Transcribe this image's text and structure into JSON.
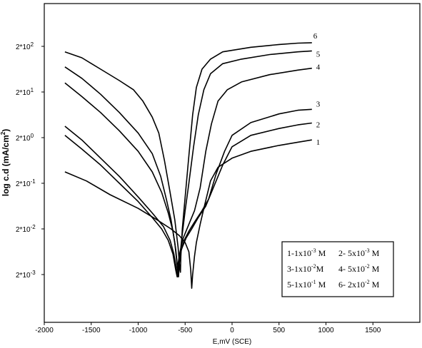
{
  "chart_data": {
    "type": "line",
    "title": "",
    "xlabel": "E,mV (SCE)",
    "ylabel": "log c.d (mA/cm",
    "ylabel_sup": "2",
    "ylabel_close": ")",
    "xlim": [
      -2000,
      2000
    ],
    "xticks": [
      -2000,
      -1500,
      -1000,
      -500,
      0,
      500,
      1000,
      1500
    ],
    "xtick_labels": [
      "-2000",
      "-1500",
      "-1000",
      "-500",
      "0",
      "500",
      "1000",
      "1500"
    ],
    "ylim": [
      -3.6,
      2.6
    ],
    "yticks": [
      {
        "value": 2,
        "base": "2*10",
        "exp": "2"
      },
      {
        "value": 1,
        "base": "2*10",
        "exp": "1"
      },
      {
        "value": 0,
        "base": "2*10",
        "exp": "0"
      },
      {
        "value": -1,
        "base": "2*10",
        "exp": "-1"
      },
      {
        "value": -2,
        "base": "2*10",
        "exp": "-2"
      },
      {
        "value": -3,
        "base": "2*10",
        "exp": "-3"
      }
    ],
    "series": [
      {
        "name": "1",
        "points": [
          [
            -1780,
            -0.75
          ],
          [
            -1550,
            -0.95
          ],
          [
            -1300,
            -1.25
          ],
          [
            -1000,
            -1.55
          ],
          [
            -800,
            -1.8
          ],
          [
            -650,
            -2.0
          ],
          [
            -560,
            -2.15
          ],
          [
            -500,
            -2.3
          ],
          [
            -460,
            -2.5
          ],
          [
            -440,
            -2.9
          ],
          [
            -430,
            -3.3
          ],
          [
            -420,
            -3.0
          ],
          [
            -400,
            -2.6
          ],
          [
            -380,
            -2.3
          ],
          [
            -340,
            -1.9
          ],
          [
            -300,
            -1.55
          ],
          [
            -230,
            -0.95
          ],
          [
            -150,
            -0.65
          ],
          [
            0,
            -0.45
          ],
          [
            200,
            -0.3
          ],
          [
            500,
            -0.17
          ],
          [
            700,
            -0.1
          ],
          [
            850,
            -0.05
          ]
        ]
      },
      {
        "name": "2",
        "points": [
          [
            -1780,
            0.05
          ],
          [
            -1600,
            -0.25
          ],
          [
            -1400,
            -0.6
          ],
          [
            -1200,
            -1.0
          ],
          [
            -1000,
            -1.4
          ],
          [
            -850,
            -1.75
          ],
          [
            -750,
            -2.0
          ],
          [
            -680,
            -2.25
          ],
          [
            -630,
            -2.55
          ],
          [
            -600,
            -2.9
          ],
          [
            -585,
            -3.05
          ],
          [
            -570,
            -2.8
          ],
          [
            -540,
            -2.45
          ],
          [
            -490,
            -2.2
          ],
          [
            -430,
            -2.0
          ],
          [
            -360,
            -1.75
          ],
          [
            -280,
            -1.5
          ],
          [
            -200,
            -1.1
          ],
          [
            -100,
            -0.6
          ],
          [
            0,
            -0.2
          ],
          [
            200,
            0.05
          ],
          [
            500,
            0.2
          ],
          [
            700,
            0.28
          ],
          [
            850,
            0.32
          ]
        ]
      },
      {
        "name": "3",
        "points": [
          [
            -1780,
            0.25
          ],
          [
            -1600,
            -0.05
          ],
          [
            -1400,
            -0.45
          ],
          [
            -1200,
            -0.85
          ],
          [
            -1000,
            -1.3
          ],
          [
            -850,
            -1.65
          ],
          [
            -730,
            -1.95
          ],
          [
            -660,
            -2.25
          ],
          [
            -620,
            -2.55
          ],
          [
            -595,
            -2.85
          ],
          [
            -580,
            -3.05
          ],
          [
            -565,
            -2.8
          ],
          [
            -545,
            -2.5
          ],
          [
            -510,
            -2.25
          ],
          [
            -460,
            -2.05
          ],
          [
            -400,
            -1.85
          ],
          [
            -320,
            -1.6
          ],
          [
            -250,
            -1.35
          ],
          [
            -170,
            -0.8
          ],
          [
            -80,
            -0.3
          ],
          [
            0,
            0.05
          ],
          [
            200,
            0.33
          ],
          [
            500,
            0.52
          ],
          [
            700,
            0.6
          ],
          [
            850,
            0.62
          ]
        ]
      },
      {
        "name": "4",
        "points": [
          [
            -1780,
            1.2
          ],
          [
            -1600,
            0.9
          ],
          [
            -1400,
            0.55
          ],
          [
            -1200,
            0.15
          ],
          [
            -1000,
            -0.3
          ],
          [
            -850,
            -0.75
          ],
          [
            -750,
            -1.2
          ],
          [
            -680,
            -1.65
          ],
          [
            -630,
            -2.05
          ],
          [
            -600,
            -2.45
          ],
          [
            -580,
            -2.85
          ],
          [
            -560,
            -2.55
          ],
          [
            -520,
            -2.2
          ],
          [
            -460,
            -1.9
          ],
          [
            -400,
            -1.6
          ],
          [
            -340,
            -1.1
          ],
          [
            -280,
            -0.3
          ],
          [
            -220,
            0.3
          ],
          [
            -150,
            0.8
          ],
          [
            -50,
            1.05
          ],
          [
            100,
            1.22
          ],
          [
            400,
            1.38
          ],
          [
            700,
            1.48
          ],
          [
            850,
            1.52
          ]
        ]
      },
      {
        "name": "5",
        "points": [
          [
            -1780,
            1.55
          ],
          [
            -1600,
            1.3
          ],
          [
            -1400,
            0.95
          ],
          [
            -1200,
            0.55
          ],
          [
            -1000,
            0.1
          ],
          [
            -850,
            -0.35
          ],
          [
            -760,
            -0.85
          ],
          [
            -700,
            -1.35
          ],
          [
            -650,
            -1.8
          ],
          [
            -610,
            -2.3
          ],
          [
            -585,
            -2.8
          ],
          [
            -570,
            -3.05
          ],
          [
            -560,
            -2.7
          ],
          [
            -535,
            -2.2
          ],
          [
            -500,
            -1.6
          ],
          [
            -460,
            -1.0
          ],
          [
            -410,
            -0.2
          ],
          [
            -360,
            0.5
          ],
          [
            -300,
            1.05
          ],
          [
            -230,
            1.4
          ],
          [
            -100,
            1.62
          ],
          [
            100,
            1.72
          ],
          [
            400,
            1.82
          ],
          [
            700,
            1.88
          ],
          [
            850,
            1.9
          ]
        ]
      },
      {
        "name": "6",
        "points": [
          [
            -1780,
            1.88
          ],
          [
            -1600,
            1.75
          ],
          [
            -1400,
            1.5
          ],
          [
            -1200,
            1.25
          ],
          [
            -1050,
            1.05
          ],
          [
            -950,
            0.8
          ],
          [
            -850,
            0.45
          ],
          [
            -780,
            0.1
          ],
          [
            -720,
            -0.5
          ],
          [
            -660,
            -1.2
          ],
          [
            -610,
            -1.8
          ],
          [
            -575,
            -2.4
          ],
          [
            -560,
            -2.8
          ],
          [
            -550,
            -2.95
          ],
          [
            -545,
            -2.6
          ],
          [
            -530,
            -2.0
          ],
          [
            -500,
            -1.3
          ],
          [
            -460,
            -0.4
          ],
          [
            -420,
            0.5
          ],
          [
            -380,
            1.1
          ],
          [
            -320,
            1.5
          ],
          [
            -230,
            1.72
          ],
          [
            -100,
            1.88
          ],
          [
            200,
            1.98
          ],
          [
            500,
            2.04
          ],
          [
            700,
            2.07
          ],
          [
            850,
            2.08
          ]
        ]
      }
    ],
    "legend": {
      "placement": "bottom-right",
      "entries": [
        {
          "text": "1-1x10",
          "exp": "-3",
          "unit": " M"
        },
        {
          "text": "2- 5x10",
          "exp": "-3",
          "unit": " M"
        },
        {
          "text": "3-1x10",
          "exp": "-2",
          "unit": "M"
        },
        {
          "text": "4- 5x10",
          "exp": "-2",
          "unit": " M"
        },
        {
          "text": "5-1x10",
          "exp": "-1",
          "unit": " M"
        },
        {
          "text": "6- 2x10",
          "exp": "-2",
          "unit": " M"
        }
      ]
    }
  }
}
